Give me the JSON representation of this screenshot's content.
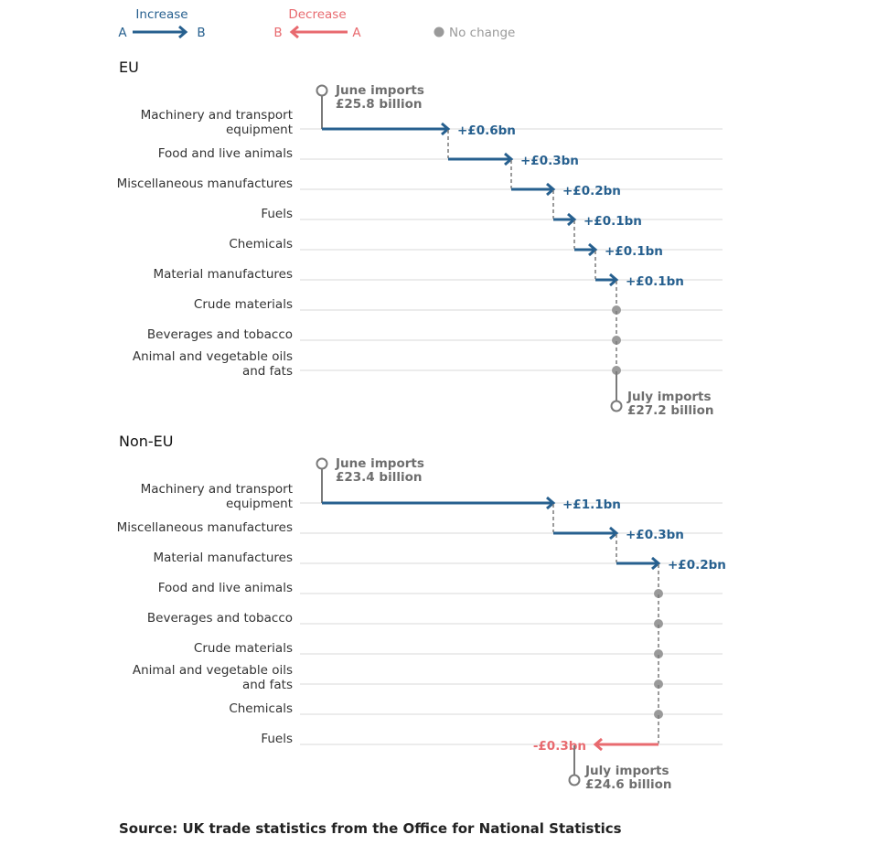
{
  "colors": {
    "increase": "#27608f",
    "decrease": "#e86a6f",
    "no_change": "#9a9a9a",
    "grid": "#d9d9d9",
    "text": "#333333",
    "endpoint_text": "#6e6e6e",
    "connector": "#7a7a7a"
  },
  "legend": {
    "increase": {
      "label": "Increase",
      "from": "A",
      "to": "B"
    },
    "decrease": {
      "label": "Decrease",
      "from": "B",
      "to": "A"
    },
    "no_change": {
      "label": "No change"
    }
  },
  "source": "Source: UK trade statistics from the Office for National Statistics",
  "chart_data": [
    {
      "type": "waterfall-arrow",
      "title": "EU",
      "start": {
        "label": "June imports",
        "value_label": "£25.8 billion",
        "value": 25.8
      },
      "end": {
        "label": "July imports",
        "value_label": "£27.2 billion",
        "value": 27.2
      },
      "categories": [
        "Machinery and transport equipment",
        "Food and live animals",
        "Miscellaneous manufactures",
        "Fuels",
        "Chemicals",
        "Material manufactures",
        "Crude materials",
        "Beverages and tobacco",
        "Animal and vegetable oils and fats"
      ],
      "values": [
        0.6,
        0.3,
        0.2,
        0.1,
        0.1,
        0.1,
        0,
        0,
        0
      ],
      "value_labels": [
        "+£0.6bn",
        "+£0.3bn",
        "+£0.2bn",
        "+£0.1bn",
        "+£0.1bn",
        "+£0.1bn",
        "",
        "",
        ""
      ],
      "grid": true
    },
    {
      "type": "waterfall-arrow",
      "title": "Non-EU",
      "start": {
        "label": "June imports",
        "value_label": "£23.4 billion",
        "value": 23.4
      },
      "end": {
        "label": "July imports",
        "value_label": "£24.6 billion",
        "value": 24.6
      },
      "categories": [
        "Machinery and transport equipment",
        "Miscellaneous manufactures",
        "Material manufactures",
        "Food and live animals",
        "Beverages and tobacco",
        "Crude materials",
        "Animal and vegetable oils and fats",
        "Chemicals",
        "Fuels"
      ],
      "values": [
        1.1,
        0.3,
        0.2,
        0,
        0,
        0,
        0,
        0,
        -0.3
      ],
      "value_labels": [
        "+£1.1bn",
        "+£0.3bn",
        "+£0.2bn",
        "",
        "",
        "",
        "",
        "",
        "-£0.3bn"
      ],
      "grid": true
    }
  ]
}
